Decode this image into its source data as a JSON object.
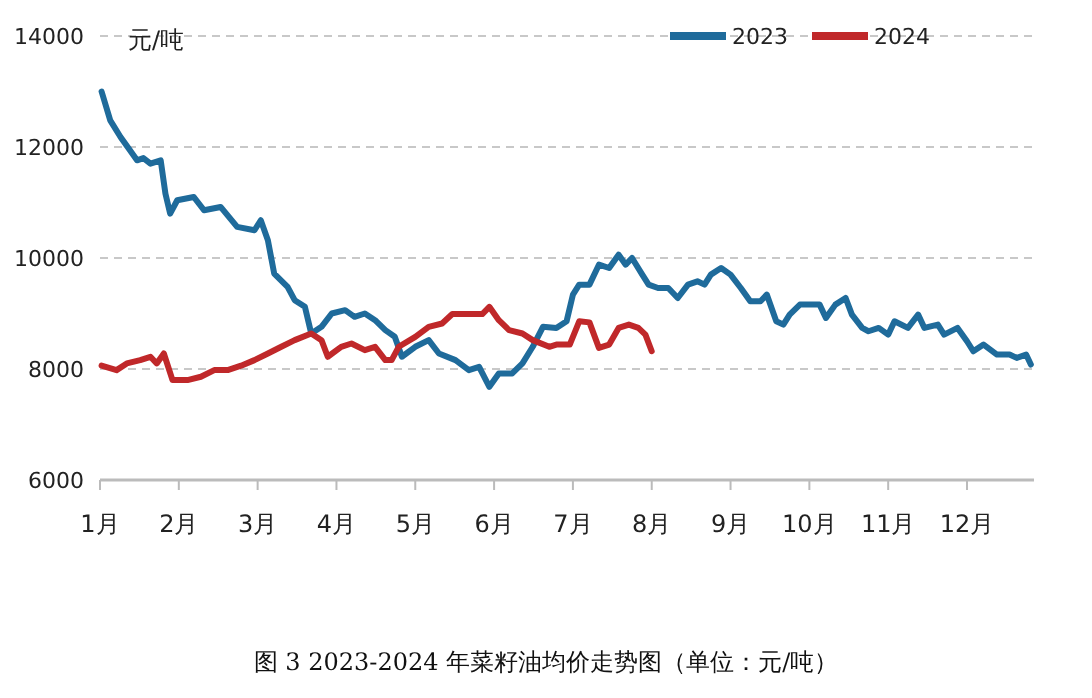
{
  "chart_data": {
    "type": "line",
    "ylabel": "元/吨",
    "annotations": [
      "图 3   2023-2024 年菜籽油均价走势图（单位：元/吨）"
    ],
    "xlim": [
      1,
      12.85
    ],
    "ylim": [
      6000,
      14000
    ],
    "xticks": [
      {
        "value": 1,
        "label": "1月"
      },
      {
        "value": 2,
        "label": "2月"
      },
      {
        "value": 3,
        "label": "3月"
      },
      {
        "value": 4,
        "label": "4月"
      },
      {
        "value": 5,
        "label": "5月"
      },
      {
        "value": 6,
        "label": "6月"
      },
      {
        "value": 7,
        "label": "7月"
      },
      {
        "value": 8,
        "label": "8月"
      },
      {
        "value": 9,
        "label": "9月"
      },
      {
        "value": 10,
        "label": "10月"
      },
      {
        "value": 11,
        "label": "11月"
      },
      {
        "value": 12,
        "label": "12月"
      }
    ],
    "yticks": [
      6000,
      8000,
      10000,
      12000,
      14000
    ],
    "grid": "y",
    "legend": "top right",
    "marker": "none",
    "line_style": "solid",
    "series": [
      {
        "name": "2023",
        "color": "#1f6b9b",
        "x": [
          1.02,
          1.13,
          1.26,
          1.38,
          1.47,
          1.55,
          1.64,
          1.77,
          1.83,
          1.89,
          1.98,
          2.19,
          2.32,
          2.53,
          2.74,
          2.96,
          3.04,
          3.13,
          3.21,
          3.38,
          3.47,
          3.6,
          3.68,
          3.81,
          3.94,
          4.11,
          4.23,
          4.36,
          4.49,
          4.62,
          4.74,
          4.83,
          5.0,
          5.17,
          5.3,
          5.51,
          5.68,
          5.81,
          5.94,
          6.06,
          6.23,
          6.36,
          6.49,
          6.62,
          6.79,
          6.92,
          7.0,
          7.08,
          7.21,
          7.33,
          7.46,
          7.58,
          7.67,
          7.75,
          7.88,
          7.96,
          8.08,
          8.21,
          8.33,
          8.46,
          8.58,
          8.67,
          8.75,
          8.88,
          9.0,
          9.13,
          9.25,
          9.38,
          9.46,
          9.58,
          9.67,
          9.75,
          9.88,
          10.13,
          10.21,
          10.33,
          10.46,
          10.54,
          10.67,
          10.75,
          10.88,
          11.0,
          11.08,
          11.25,
          11.38,
          11.46,
          11.63,
          11.71,
          11.88,
          12.0,
          12.08,
          12.21,
          12.38,
          12.54,
          12.63,
          12.75,
          12.81
        ],
        "values": [
          13000,
          12480,
          12180,
          11940,
          11760,
          11800,
          11700,
          11760,
          11160,
          10800,
          11040,
          11100,
          10860,
          10920,
          10560,
          10500,
          10680,
          10320,
          9720,
          9480,
          9240,
          9120,
          8640,
          8760,
          9000,
          9060,
          8940,
          9000,
          8880,
          8700,
          8580,
          8220,
          8400,
          8520,
          8280,
          8160,
          7980,
          8040,
          7680,
          7920,
          7920,
          8100,
          8400,
          8760,
          8740,
          8860,
          9340,
          9520,
          9520,
          9880,
          9820,
          10060,
          9880,
          10000,
          9700,
          9520,
          9460,
          9460,
          9280,
          9520,
          9580,
          9520,
          9700,
          9820,
          9700,
          9460,
          9220,
          9220,
          9340,
          8860,
          8800,
          8980,
          9160,
          9160,
          8920,
          9160,
          9280,
          8980,
          8740,
          8680,
          8740,
          8620,
          8860,
          8740,
          8980,
          8740,
          8800,
          8620,
          8740,
          8500,
          8320,
          8440,
          8260,
          8260,
          8200,
          8260,
          8080
        ]
      },
      {
        "name": "2024",
        "color": "#c0282a",
        "x": [
          1.02,
          1.21,
          1.34,
          1.51,
          1.64,
          1.72,
          1.81,
          1.92,
          2.11,
          2.28,
          2.45,
          2.62,
          2.79,
          2.96,
          3.13,
          3.3,
          3.47,
          3.68,
          3.81,
          3.89,
          4.06,
          4.19,
          4.36,
          4.49,
          4.62,
          4.7,
          4.79,
          5.0,
          5.17,
          5.34,
          5.47,
          5.68,
          5.85,
          5.94,
          6.06,
          6.19,
          6.36,
          6.49,
          6.7,
          6.79,
          6.96,
          7.08,
          7.21,
          7.33,
          7.46,
          7.58,
          7.71,
          7.83,
          7.92,
          8.0
        ],
        "values": [
          8060,
          7980,
          8100,
          8160,
          8220,
          8100,
          8280,
          7800,
          7800,
          7860,
          7980,
          7980,
          8060,
          8160,
          8280,
          8400,
          8520,
          8640,
          8520,
          8220,
          8400,
          8460,
          8340,
          8400,
          8160,
          8160,
          8400,
          8580,
          8760,
          8820,
          8990,
          8990,
          8990,
          9120,
          8880,
          8700,
          8640,
          8520,
          8400,
          8440,
          8440,
          8860,
          8840,
          8380,
          8440,
          8740,
          8800,
          8740,
          8620,
          8320
        ]
      }
    ]
  }
}
